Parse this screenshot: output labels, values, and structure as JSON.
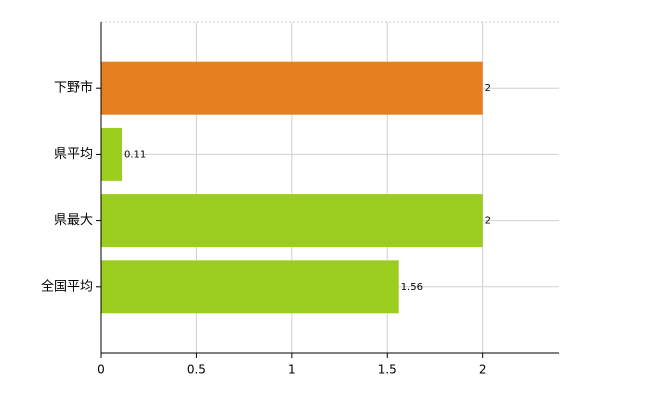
{
  "chart_data": {
    "type": "hbar",
    "categories": [
      "下野市",
      "県平均",
      "県最大",
      "全国平均"
    ],
    "values": [
      2,
      0.11,
      2,
      1.56
    ],
    "colors": [
      "#e67e22",
      "#9acd1e",
      "#9acd1e",
      "#9acd1e"
    ],
    "xlim": [
      0,
      2.4
    ],
    "xticks": [
      0,
      0.5,
      1,
      1.5,
      2
    ],
    "grid": true
  }
}
